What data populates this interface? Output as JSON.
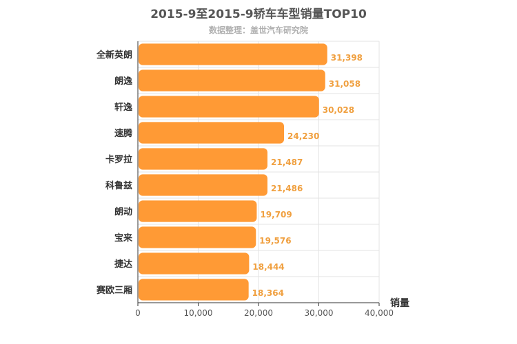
{
  "header": {
    "title": "2015-9至2015-9轿车车型销量TOP10",
    "subtitle": "数据整理：盖世汽车研究院"
  },
  "chart_data": {
    "type": "bar",
    "orientation": "horizontal",
    "title": "2015-9至2015-9轿车车型销量TOP10",
    "subtitle": "数据整理：盖世汽车研究院",
    "xlabel": "销量",
    "ylabel": "",
    "categories": [
      "全新英朗",
      "朗逸",
      "轩逸",
      "速腾",
      "卡罗拉",
      "科鲁兹",
      "朗动",
      "宝来",
      "捷达",
      "赛欧三厢"
    ],
    "values": [
      31398,
      31058,
      30028,
      24230,
      21487,
      21486,
      19709,
      19576,
      18444,
      18364
    ],
    "value_labels": [
      "31,398",
      "31,058",
      "30,028",
      "24,230",
      "21,487",
      "21,486",
      "19,709",
      "19,576",
      "18,444",
      "18,364"
    ],
    "xlim": [
      0,
      40000
    ],
    "xticks": [
      0,
      10000,
      20000,
      30000,
      40000
    ],
    "xtick_labels": [
      "0",
      "10,000",
      "20,000",
      "30,000",
      "40,000"
    ],
    "grid": true,
    "bar_color": "#ff9a35",
    "label_color": "#f0a040"
  }
}
